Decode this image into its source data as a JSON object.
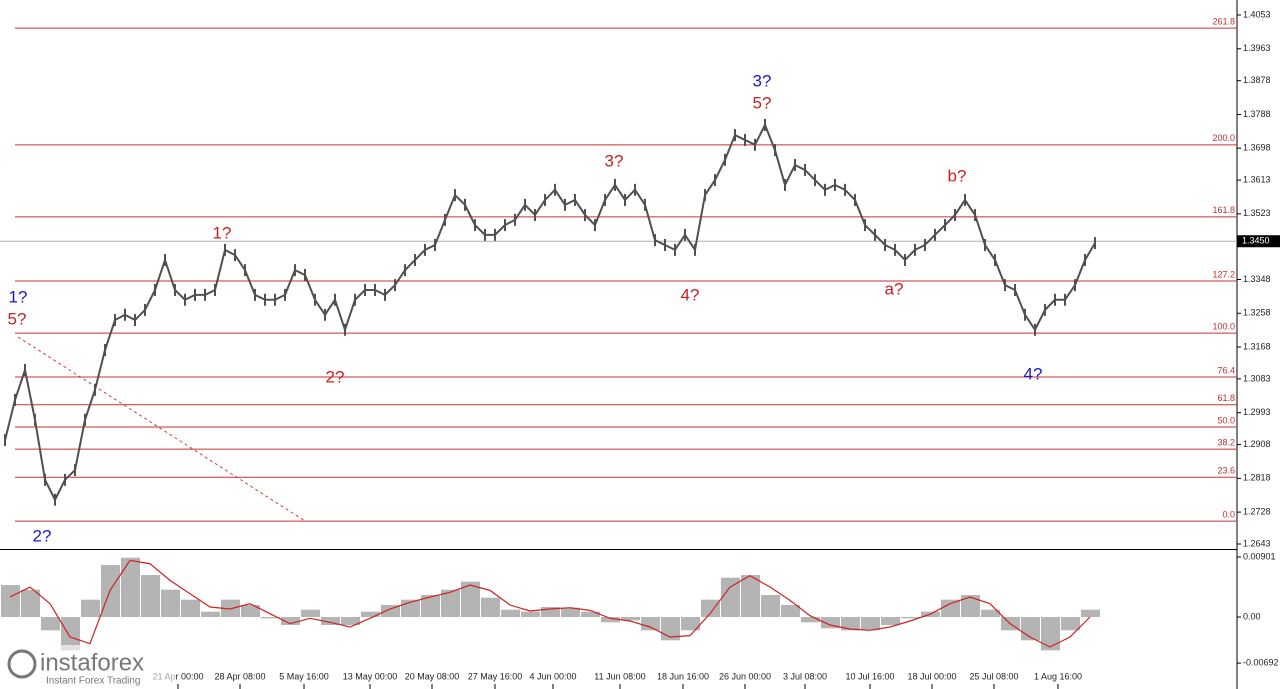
{
  "chart_data": [
    {
      "type": "line",
      "name": "GBP/USD",
      "color": "#505050",
      "values": [
        1.292,
        1.3027,
        1.3107,
        1.2974,
        1.2814,
        1.2761,
        1.2814,
        1.284,
        1.2974,
        1.3054,
        1.316,
        1.324,
        1.3254,
        1.324,
        1.3267,
        1.332,
        1.34,
        1.332,
        1.3294,
        1.3307,
        1.3307,
        1.332,
        1.3427,
        1.3413,
        1.3373,
        1.3307,
        1.3294,
        1.3294,
        1.3307,
        1.3373,
        1.336,
        1.3294,
        1.3254,
        1.3294,
        1.3214,
        1.3294,
        1.332,
        1.332,
        1.3307,
        1.3333,
        1.3373,
        1.34,
        1.3427,
        1.344,
        1.3507,
        1.3573,
        1.3547,
        1.3493,
        1.3467,
        1.3467,
        1.3493,
        1.3507,
        1.3547,
        1.352,
        1.356,
        1.3587,
        1.3547,
        1.356,
        1.352,
        1.3493,
        1.356,
        1.36,
        1.356,
        1.3587,
        1.3547,
        1.3453,
        1.344,
        1.3427,
        1.3467,
        1.3427,
        1.3573,
        1.3613,
        1.3667,
        1.3733,
        1.372,
        1.3707,
        1.376,
        1.3693,
        1.36,
        1.3653,
        1.364,
        1.3613,
        1.3587,
        1.36,
        1.3587,
        1.356,
        1.3493,
        1.3467,
        1.344,
        1.3427,
        1.34,
        1.3427,
        1.344,
        1.3467,
        1.3493,
        1.352,
        1.356,
        1.352,
        1.344,
        1.34,
        1.3333,
        1.332,
        1.3254,
        1.3214,
        1.3267,
        1.3294,
        1.3294,
        1.3333,
        1.34,
        1.3445
      ],
      "xlim": [
        0,
        123.7
      ],
      "xticks": [
        {
          "value": 17.8,
          "label": "21 Apr 00:00"
        },
        {
          "value": 24,
          "label": "28 Apr 08:00"
        },
        {
          "value": 30.4,
          "label": "5 May 16:00"
        },
        {
          "value": 37,
          "label": "13 May 00:00"
        },
        {
          "value": 43.2,
          "label": "20 May 08:00"
        },
        {
          "value": 49.5,
          "label": "27 May 16:00"
        },
        {
          "value": 55.3,
          "label": "4 Jun 00:00"
        },
        {
          "value": 62,
          "label": "11 Jun 08:00"
        },
        {
          "value": 68.3,
          "label": "18 Jun 16:00"
        },
        {
          "value": 74.5,
          "label": "26 Jun 00:00"
        },
        {
          "value": 80.5,
          "label": "3 Jul 08:00"
        },
        {
          "value": 87,
          "label": "10 Jul 16:00"
        },
        {
          "value": 93.2,
          "label": "18 Jul 00:00"
        },
        {
          "value": 99.4,
          "label": "25 Jul 08:00"
        },
        {
          "value": 105.8,
          "label": "1 Aug 16:00"
        }
      ],
      "ylim": [
        1.2635,
        1.4093
      ],
      "yticks": [
        1.4053,
        1.3963,
        1.3878,
        1.3788,
        1.3698,
        1.3613,
        1.3523,
        1.3348,
        1.3258,
        1.3168,
        1.3083,
        1.2993,
        1.2908,
        1.2818,
        1.2728,
        1.2643
      ],
      "last_price": {
        "value": 1.345,
        "label": "1.3450"
      },
      "fib_levels": [
        {
          "name": "261.8",
          "price": 1.4018
        },
        {
          "name": "200.0",
          "price": 1.3707
        },
        {
          "name": "161.8",
          "price": 1.3515
        },
        {
          "name": "127.2",
          "price": 1.3344
        },
        {
          "name": "100.0",
          "price": 1.3205
        },
        {
          "name": "76.4",
          "price": 1.3088
        },
        {
          "name": "61.8",
          "price": 1.3014
        },
        {
          "name": "50.0",
          "price": 1.2955
        },
        {
          "name": "38.2",
          "price": 1.2896
        },
        {
          "name": "23.6",
          "price": 1.2821
        },
        {
          "name": "0.0",
          "price": 1.2704
        }
      ],
      "fib_color": "#c83232",
      "annotations": [
        {
          "text": "1?",
          "color": "#1a1ac8"
        },
        {
          "text": "5?",
          "color": "#c82020"
        },
        {
          "text": "2?",
          "color": "#1a1ac8"
        },
        {
          "text": "1?",
          "color": "#c82020"
        },
        {
          "text": "2?",
          "color": "#c82020"
        },
        {
          "text": "3?",
          "color": "#c82020"
        },
        {
          "text": "4?",
          "color": "#c82020"
        },
        {
          "text": "3?",
          "color": "#1a1ac8"
        },
        {
          "text": "5?",
          "color": "#c82020"
        },
        {
          "text": "b?",
          "color": "#c82020"
        },
        {
          "text": "a?",
          "color": "#c82020"
        },
        {
          "text": "4?",
          "color": "#1a1ac8"
        }
      ]
    },
    {
      "type": "oscillator",
      "histogram_color": "#b4b4b4",
      "signal_color": "#d02020",
      "histogram": [
        0.0048,
        0.0041,
        -0.002,
        -0.005,
        0.0026,
        0.0078,
        0.0089,
        0.0063,
        0.0041,
        0.0026,
        0.0008,
        0.0026,
        0.0018,
        -0.0002,
        -0.0012,
        0.0011,
        -0.0012,
        -0.0012,
        0.0008,
        0.0018,
        0.0026,
        0.0033,
        0.0041,
        0.0053,
        0.0029,
        0.0011,
        0.0008,
        0.0015,
        0.0014,
        0.0008,
        -0.0008,
        -0.0005,
        -0.002,
        -0.0035,
        -0.002,
        0.0026,
        0.0059,
        0.0063,
        0.0033,
        0.0018,
        -0.0008,
        -0.0017,
        -0.002,
        -0.002,
        -0.0012,
        -0.0002,
        0.0008,
        0.0026,
        0.0033,
        0.0011,
        -0.002,
        -0.0035,
        -0.005,
        -0.002,
        0.0011
      ],
      "signal": [
        0.003,
        0.0045,
        0.002,
        -0.003,
        -0.004,
        0.004,
        0.0085,
        0.008,
        0.0055,
        0.0035,
        0.0015,
        0.0012,
        0.002,
        0.0005,
        -0.001,
        -0.0002,
        -0.0008,
        -0.0015,
        -0.0002,
        0.0012,
        0.0022,
        0.003,
        0.0037,
        0.0048,
        0.004,
        0.0018,
        0.0009,
        0.0012,
        0.0014,
        0.001,
        -0.0002,
        -0.0006,
        -0.0015,
        -0.003,
        -0.0028,
        0.0005,
        0.0045,
        0.0062,
        0.0045,
        0.0025,
        0.0002,
        -0.0012,
        -0.0018,
        -0.002,
        -0.0015,
        -0.0006,
        0.0004,
        0.002,
        0.003,
        0.002,
        -0.001,
        -0.003,
        -0.0045,
        -0.003,
        0.0
      ],
      "ylim": [
        -0.01081,
        0.00976
      ],
      "yticks": [
        0.00901,
        {
          "value": 0,
          "label": "0.00"
        },
        -0.00692
      ]
    }
  ],
  "watermark": {
    "brand": "instaforex",
    "tagline": "Instant Forex Trading"
  }
}
